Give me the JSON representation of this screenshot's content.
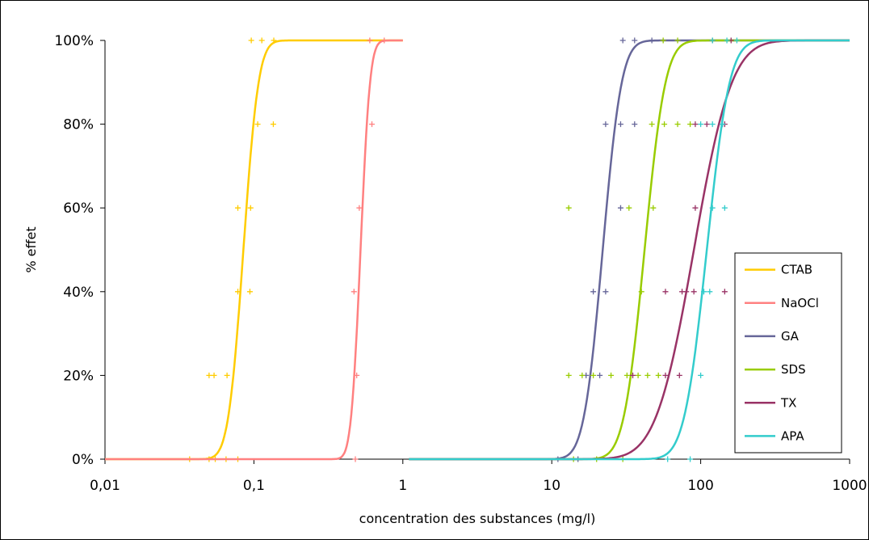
{
  "chart_data": {
    "type": "line",
    "title": "",
    "xlabel": "concentration des substances (mg/l)",
    "ylabel": "% effet",
    "xscale": "log",
    "xlim": [
      0.01,
      1000
    ],
    "ylim": [
      0,
      1
    ],
    "xtick_labels": [
      "0,01",
      "0,1",
      "1",
      "10",
      "100",
      "1000"
    ],
    "xtick_values": [
      0.01,
      0.1,
      1,
      10,
      100,
      1000
    ],
    "ytick_labels": [
      "0%",
      "20%",
      "40%",
      "60%",
      "80%",
      "100%"
    ],
    "ytick_values": [
      0,
      0.2,
      0.4,
      0.6,
      0.8,
      1.0
    ],
    "grid": false,
    "legend_position": "right",
    "series": [
      {
        "name": "CTAB",
        "color": "#ffcc00",
        "curve": {
          "median": 0.085,
          "sigma_log10": 0.08,
          "xmin": 0.01,
          "xmax": 1
        },
        "points": [
          {
            "x": 0.037,
            "y": 0
          },
          {
            "x": 0.05,
            "y": 0
          },
          {
            "x": 0.055,
            "y": 0
          },
          {
            "x": 0.065,
            "y": 0
          },
          {
            "x": 0.078,
            "y": 0
          },
          {
            "x": 0.05,
            "y": 0.2
          },
          {
            "x": 0.054,
            "y": 0.2
          },
          {
            "x": 0.066,
            "y": 0.2
          },
          {
            "x": 0.078,
            "y": 0.4
          },
          {
            "x": 0.094,
            "y": 0.4
          },
          {
            "x": 0.078,
            "y": 0.6
          },
          {
            "x": 0.095,
            "y": 0.6
          },
          {
            "x": 0.106,
            "y": 0.8
          },
          {
            "x": 0.135,
            "y": 0.8
          },
          {
            "x": 0.096,
            "y": 1
          },
          {
            "x": 0.113,
            "y": 1
          },
          {
            "x": 0.136,
            "y": 1
          }
        ]
      },
      {
        "name": "NaOCl",
        "color": "#ff8080",
        "curve": {
          "median": 0.52,
          "sigma_log10": 0.05,
          "xmin": 0.01,
          "xmax": 1
        },
        "points": [
          {
            "x": 0.48,
            "y": 0
          },
          {
            "x": 0.49,
            "y": 0.2
          },
          {
            "x": 0.47,
            "y": 0.4
          },
          {
            "x": 0.51,
            "y": 0.6
          },
          {
            "x": 0.62,
            "y": 0.8
          },
          {
            "x": 0.6,
            "y": 1
          },
          {
            "x": 0.75,
            "y": 1
          }
        ]
      },
      {
        "name": "GA",
        "color": "#666699",
        "curve": {
          "median": 22,
          "sigma_log10": 0.1,
          "xmin": 1.1,
          "xmax": 1000
        },
        "points": [
          {
            "x": 11,
            "y": 0
          },
          {
            "x": 15,
            "y": 0
          },
          {
            "x": 17,
            "y": 0.2
          },
          {
            "x": 21,
            "y": 0.2
          },
          {
            "x": 19,
            "y": 0.4
          },
          {
            "x": 23,
            "y": 0.4
          },
          {
            "x": 29,
            "y": 0.6
          },
          {
            "x": 23,
            "y": 0.8
          },
          {
            "x": 29,
            "y": 0.8
          },
          {
            "x": 36,
            "y": 0.8
          },
          {
            "x": 30,
            "y": 1
          },
          {
            "x": 36,
            "y": 1
          },
          {
            "x": 47,
            "y": 1
          }
        ]
      },
      {
        "name": "SDS",
        "color": "#99cc00",
        "curve": {
          "median": 42,
          "sigma_log10": 0.11,
          "xmin": 1.1,
          "xmax": 1000
        },
        "points": [
          {
            "x": 14,
            "y": 0
          },
          {
            "x": 20,
            "y": 0
          },
          {
            "x": 30,
            "y": 0
          },
          {
            "x": 13,
            "y": 0.2
          },
          {
            "x": 16,
            "y": 0.2
          },
          {
            "x": 19,
            "y": 0.2
          },
          {
            "x": 25,
            "y": 0.2
          },
          {
            "x": 32,
            "y": 0.2
          },
          {
            "x": 38,
            "y": 0.2
          },
          {
            "x": 44,
            "y": 0.2
          },
          {
            "x": 52,
            "y": 0.2
          },
          {
            "x": 40,
            "y": 0.4
          },
          {
            "x": 13,
            "y": 0.6
          },
          {
            "x": 33,
            "y": 0.6
          },
          {
            "x": 48,
            "y": 0.6
          },
          {
            "x": 47,
            "y": 0.8
          },
          {
            "x": 57,
            "y": 0.8
          },
          {
            "x": 70,
            "y": 0.8
          },
          {
            "x": 85,
            "y": 0.8
          },
          {
            "x": 56,
            "y": 1
          },
          {
            "x": 70,
            "y": 1
          }
        ]
      },
      {
        "name": "TX",
        "color": "#993366",
        "curve": {
          "median": 90,
          "sigma_log10": 0.2,
          "xmin": 1.1,
          "xmax": 1000
        },
        "points": [
          {
            "x": 35,
            "y": 0.2
          },
          {
            "x": 58,
            "y": 0.2
          },
          {
            "x": 72,
            "y": 0.2
          },
          {
            "x": 58,
            "y": 0.4
          },
          {
            "x": 75,
            "y": 0.4
          },
          {
            "x": 80,
            "y": 0.4
          },
          {
            "x": 90,
            "y": 0.4
          },
          {
            "x": 145,
            "y": 0.4
          },
          {
            "x": 92,
            "y": 0.6
          },
          {
            "x": 92,
            "y": 0.8
          },
          {
            "x": 110,
            "y": 0.8
          },
          {
            "x": 140,
            "y": 0.8
          },
          {
            "x": 145,
            "y": 0.8
          },
          {
            "x": 120,
            "y": 1
          },
          {
            "x": 160,
            "y": 1
          }
        ]
      },
      {
        "name": "APA",
        "color": "#33cccc",
        "curve": {
          "median": 110,
          "sigma_log10": 0.12,
          "xmin": 1.1,
          "xmax": 1000
        },
        "points": [
          {
            "x": 60,
            "y": 0
          },
          {
            "x": 85,
            "y": 0
          },
          {
            "x": 100,
            "y": 0.2
          },
          {
            "x": 105,
            "y": 0.4
          },
          {
            "x": 115,
            "y": 0.4
          },
          {
            "x": 120,
            "y": 0.6
          },
          {
            "x": 145,
            "y": 0.6
          },
          {
            "x": 100,
            "y": 0.8
          },
          {
            "x": 120,
            "y": 0.8
          },
          {
            "x": 140,
            "y": 0.8
          },
          {
            "x": 120,
            "y": 1
          },
          {
            "x": 150,
            "y": 1
          },
          {
            "x": 175,
            "y": 1
          }
        ]
      }
    ]
  }
}
